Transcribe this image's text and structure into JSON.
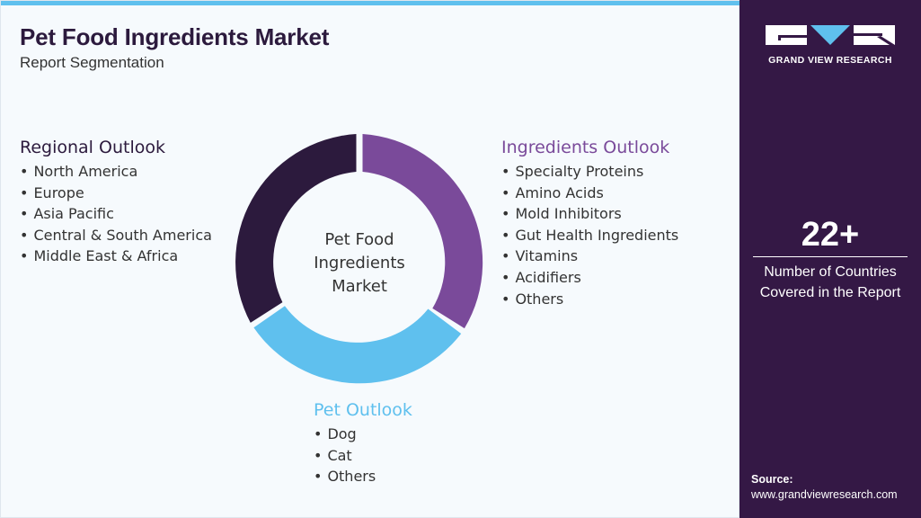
{
  "header": {
    "title": "Pet Food Ingredients Market",
    "subtitle": "Report Segmentation"
  },
  "diagram": {
    "center_label_lines": [
      "Pet Food",
      "Ingredients",
      "Market"
    ],
    "segments": [
      {
        "id": "regional",
        "heading": "Regional Outlook",
        "color": "#2c1a3d",
        "items": [
          "North America",
          "Europe",
          "Asia Pacific",
          "Central & South America",
          "Middle East & Africa"
        ]
      },
      {
        "id": "ingredients",
        "heading": "Ingredients Outlook",
        "color": "#7a4a9a",
        "items": [
          "Specialty Proteins",
          "Amino Acids",
          "Mold Inhibitors",
          "Gut Health Ingredients",
          "Vitamins",
          "Acidifiers",
          "Others"
        ]
      },
      {
        "id": "pet",
        "heading": "Pet Outlook",
        "color": "#5fc0ee",
        "items": [
          "Dog",
          "Cat",
          "Others"
        ]
      }
    ]
  },
  "sidebar": {
    "logo_text": "GRAND VIEW RESEARCH",
    "stat_value": "22+",
    "stat_label_lines": [
      "Number of Countries",
      "Covered in the Report"
    ],
    "source_label": "Source:",
    "source_url": "www.grandviewresearch.com"
  },
  "colors": {
    "accent_blue": "#5fc0ee",
    "purple": "#7a4a9a",
    "dark_purple": "#2c1a3d",
    "sidebar_bg": "#341845"
  }
}
